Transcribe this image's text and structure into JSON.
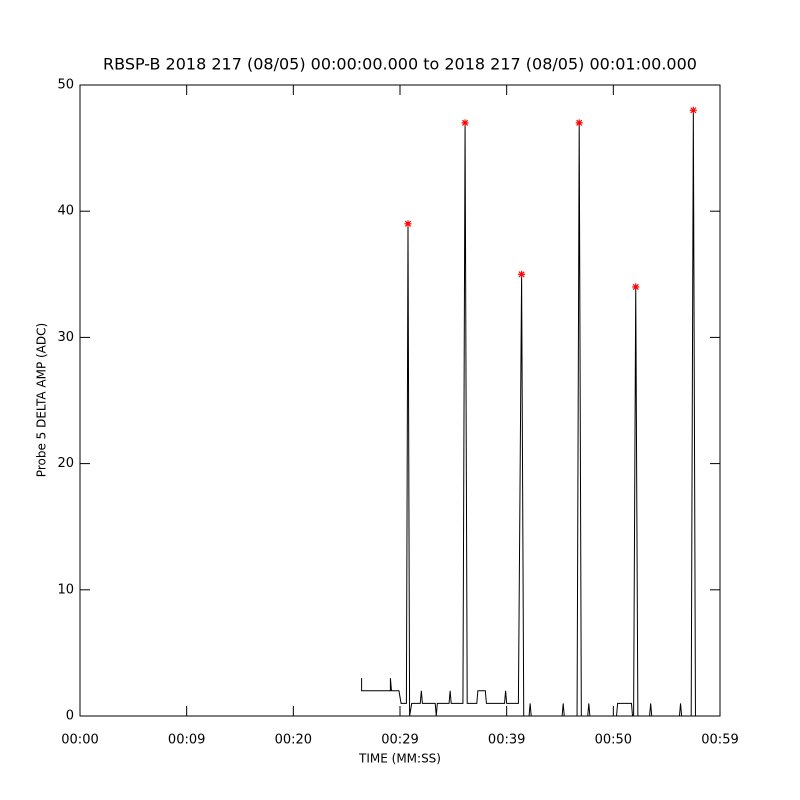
{
  "chart_data": {
    "type": "line",
    "title": "RBSP-B 2018 217 (08/05) 00:00:00.000 to 2018 217 (08/05) 00:01:00.000",
    "x_label": "TIME (MM:SS)",
    "y_label": "Probe 5 DELTA AMP (ADC)",
    "xlim": [
      0,
      60
    ],
    "xticks": [
      {
        "value": 0,
        "label": "00:00"
      },
      {
        "value": 10,
        "label": "00:09"
      },
      {
        "value": 20,
        "label": "00:20"
      },
      {
        "value": 30,
        "label": "00:29"
      },
      {
        "value": 40,
        "label": "00:39"
      },
      {
        "value": 50,
        "label": "00:50"
      },
      {
        "value": 60,
        "label": "00:59"
      }
    ],
    "ylim": [
      0,
      50
    ],
    "yticks": [
      0,
      10,
      20,
      30,
      40,
      50
    ],
    "series": [
      {
        "type": "line",
        "color": "#000000",
        "x": [
          26.4,
          26.4,
          29.1,
          29.1,
          29.2,
          29.9,
          30.1,
          30.6,
          30.75,
          30.9,
          31.1,
          31.9,
          32.0,
          32.1,
          33.3,
          33.4,
          33.5,
          34.6,
          34.7,
          34.8,
          35.9,
          36.1,
          36.3,
          37.2,
          37.3,
          38.0,
          38.1,
          39.8,
          39.9,
          40.0,
          41.1,
          41.4,
          41.6,
          42.1,
          42.2,
          42.3,
          45.2,
          45.3,
          45.4,
          46.6,
          46.8,
          47.0,
          47.6,
          47.7,
          47.8,
          50.3,
          50.4,
          51.7,
          51.8,
          51.9,
          52.1,
          52.3,
          53.4,
          53.5,
          53.6,
          56.2,
          56.3,
          56.4,
          57.3,
          57.5,
          57.7
        ],
        "values": [
          3,
          2,
          2,
          3,
          2,
          2,
          1,
          1,
          39,
          0,
          1,
          1,
          2,
          1,
          1,
          0,
          1,
          1,
          2,
          1,
          1,
          47,
          1,
          1,
          2,
          2,
          1,
          1,
          2,
          1,
          1,
          35,
          0,
          0,
          1,
          0,
          0,
          1,
          0,
          0,
          47,
          0,
          0,
          1,
          0,
          0,
          1,
          1,
          0,
          0,
          34,
          0,
          0,
          1,
          0,
          0,
          1,
          0,
          0,
          48,
          0
        ]
      },
      {
        "type": "scatter",
        "color": "#ff0000",
        "x": [
          30.75,
          36.1,
          41.4,
          46.8,
          52.1,
          57.5
        ],
        "values": [
          39,
          47,
          35,
          47,
          34,
          48
        ]
      }
    ]
  }
}
